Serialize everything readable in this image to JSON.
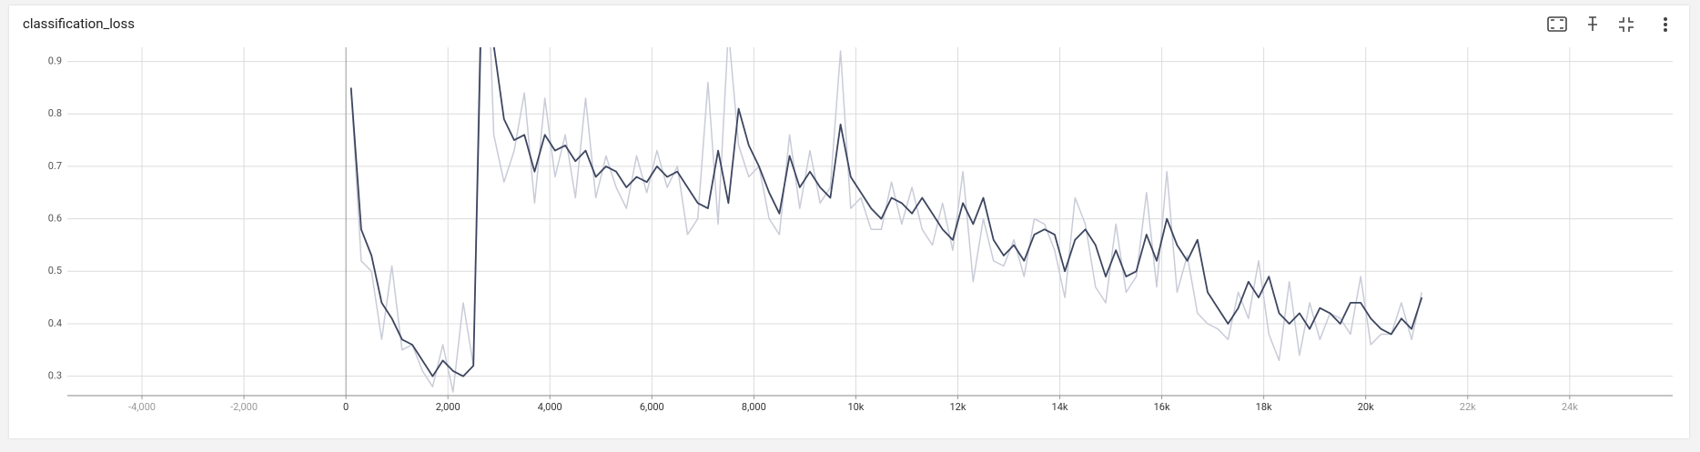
{
  "chart_data": {
    "type": "line",
    "title": "classification_loss",
    "x": [
      100,
      300,
      500,
      700,
      900,
      1100,
      1300,
      1500,
      1700,
      1900,
      2100,
      2300,
      2500,
      2700,
      2900,
      3100,
      3300,
      3500,
      3700,
      3900,
      4100,
      4300,
      4500,
      4700,
      4900,
      5100,
      5300,
      5500,
      5700,
      5900,
      6100,
      6300,
      6500,
      6700,
      6900,
      7100,
      7300,
      7500,
      7700,
      7900,
      8100,
      8300,
      8500,
      8700,
      8900,
      9100,
      9300,
      9500,
      9700,
      9900,
      10100,
      10300,
      10500,
      10700,
      10900,
      11100,
      11300,
      11500,
      11700,
      11900,
      12100,
      12300,
      12500,
      12700,
      12900,
      13100,
      13300,
      13500,
      13700,
      13900,
      14100,
      14300,
      14500,
      14700,
      14900,
      15100,
      15300,
      15500,
      15700,
      15900,
      16100,
      16300,
      16500,
      16700,
      16900,
      17100,
      17300,
      17500,
      17700,
      17900,
      18100,
      18300,
      18500,
      18700,
      18900,
      19100,
      19300,
      19500,
      19700,
      19900,
      20100,
      20300,
      20500,
      20700,
      20900,
      21100
    ],
    "series": [
      {
        "color": "#c9ccd8",
        "values": [
          0.85,
          0.52,
          0.5,
          0.37,
          0.51,
          0.35,
          0.36,
          0.31,
          0.28,
          0.36,
          0.27,
          0.44,
          0.32,
          1.3,
          0.76,
          0.67,
          0.73,
          0.84,
          0.63,
          0.83,
          0.68,
          0.76,
          0.64,
          0.83,
          0.64,
          0.72,
          0.66,
          0.62,
          0.72,
          0.65,
          0.73,
          0.66,
          0.7,
          0.57,
          0.6,
          0.86,
          0.59,
          0.96,
          0.74,
          0.68,
          0.7,
          0.6,
          0.57,
          0.76,
          0.62,
          0.73,
          0.63,
          0.66,
          0.92,
          0.62,
          0.64,
          0.58,
          0.58,
          0.67,
          0.59,
          0.66,
          0.58,
          0.55,
          0.63,
          0.54,
          0.69,
          0.48,
          0.6,
          0.52,
          0.51,
          0.56,
          0.49,
          0.6,
          0.59,
          0.54,
          0.45,
          0.64,
          0.59,
          0.47,
          0.44,
          0.59,
          0.46,
          0.49,
          0.65,
          0.47,
          0.69,
          0.46,
          0.53,
          0.42,
          0.4,
          0.39,
          0.37,
          0.46,
          0.41,
          0.52,
          0.38,
          0.33,
          0.48,
          0.34,
          0.44,
          0.37,
          0.42,
          0.41,
          0.38,
          0.49,
          0.36,
          0.38,
          0.38,
          0.44,
          0.37,
          0.46
        ]
      },
      {
        "color": "#3d4660",
        "values": [
          0.85,
          0.58,
          0.53,
          0.44,
          0.41,
          0.37,
          0.36,
          0.33,
          0.3,
          0.33,
          0.31,
          0.3,
          0.32,
          1.2,
          0.93,
          0.79,
          0.75,
          0.76,
          0.69,
          0.76,
          0.73,
          0.74,
          0.71,
          0.73,
          0.68,
          0.7,
          0.69,
          0.66,
          0.68,
          0.67,
          0.7,
          0.68,
          0.69,
          0.66,
          0.63,
          0.62,
          0.73,
          0.63,
          0.81,
          0.74,
          0.7,
          0.65,
          0.61,
          0.72,
          0.66,
          0.69,
          0.66,
          0.64,
          0.78,
          0.68,
          0.65,
          0.62,
          0.6,
          0.64,
          0.63,
          0.61,
          0.64,
          0.61,
          0.58,
          0.56,
          0.63,
          0.59,
          0.64,
          0.56,
          0.53,
          0.55,
          0.52,
          0.57,
          0.58,
          0.57,
          0.5,
          0.56,
          0.58,
          0.55,
          0.49,
          0.54,
          0.49,
          0.5,
          0.57,
          0.52,
          0.6,
          0.55,
          0.52,
          0.56,
          0.46,
          0.43,
          0.4,
          0.43,
          0.48,
          0.45,
          0.49,
          0.42,
          0.4,
          0.42,
          0.39,
          0.43,
          0.42,
          0.4,
          0.44,
          0.44,
          0.41,
          0.39,
          0.38,
          0.41,
          0.39,
          0.45
        ]
      }
    ],
    "xlim": [
      -5464,
      26020
    ],
    "ylim": [
      0.263,
      0.927
    ],
    "xticks": [
      {
        "value": -4000,
        "label": "-4,000"
      },
      {
        "value": -2000,
        "label": "-2,000"
      },
      0,
      {
        "value": 2000,
        "label": "2,000"
      },
      {
        "value": 4000,
        "label": "4,000"
      },
      {
        "value": 6000,
        "label": "6,000"
      },
      {
        "value": 8000,
        "label": "8,000"
      },
      {
        "value": 10000,
        "label": "10k"
      },
      {
        "value": 12000,
        "label": "12k"
      },
      {
        "value": 14000,
        "label": "14k"
      },
      {
        "value": 16000,
        "label": "16k"
      },
      {
        "value": 18000,
        "label": "18k"
      },
      {
        "value": 20000,
        "label": "20k"
      },
      {
        "value": 22000,
        "label": "22k"
      },
      {
        "value": 24000,
        "label": "24k"
      }
    ],
    "yticks": [
      0.3,
      0.4,
      0.5,
      0.6,
      0.7,
      0.8,
      0.9
    ],
    "grid": true
  }
}
